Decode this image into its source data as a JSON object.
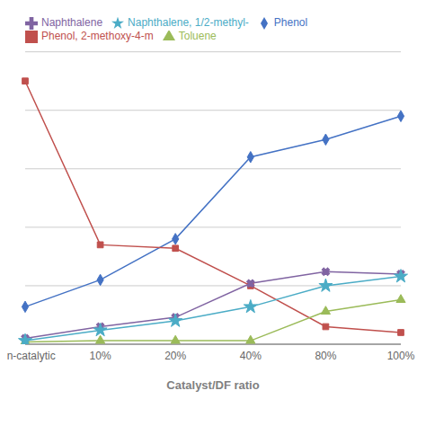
{
  "chart_data": {
    "type": "line",
    "xlabel": "Catalyst/DF ratio",
    "categories": [
      "non-catalytic",
      "10%",
      "20%",
      "40%",
      "80%",
      "100%"
    ],
    "series": [
      {
        "name": "Phenol",
        "color": "#4472C4",
        "marker": "diamond",
        "values": [
          3.2,
          5.5,
          9.0,
          16.0,
          17.5,
          19.5
        ]
      },
      {
        "name": "Phenol, 2-methoxy-4-m",
        "color": "#C0504D",
        "marker": "square",
        "values": [
          22.5,
          8.5,
          8.2,
          5.0,
          1.5,
          1.0
        ]
      },
      {
        "name": "Toluene",
        "color": "#9BBB59",
        "marker": "triangle",
        "values": [
          0.2,
          0.3,
          0.3,
          0.3,
          2.8,
          3.8
        ]
      },
      {
        "name": "Naphthalene",
        "color": "#8064A2",
        "marker": "x",
        "values": [
          0.5,
          1.5,
          2.3,
          5.2,
          6.2,
          6.0
        ]
      },
      {
        "name": "Naphthalene, 1/2-methyl-",
        "color": "#4BACC6",
        "marker": "star",
        "values": [
          0.3,
          1.2,
          2.0,
          3.2,
          5.0,
          5.8
        ]
      }
    ],
    "ylim": [
      0,
      25
    ],
    "yticks": [
      0,
      5,
      10,
      15,
      20,
      25
    ],
    "grid": true,
    "legend": "upper left",
    "tick_labels": "x"
  }
}
